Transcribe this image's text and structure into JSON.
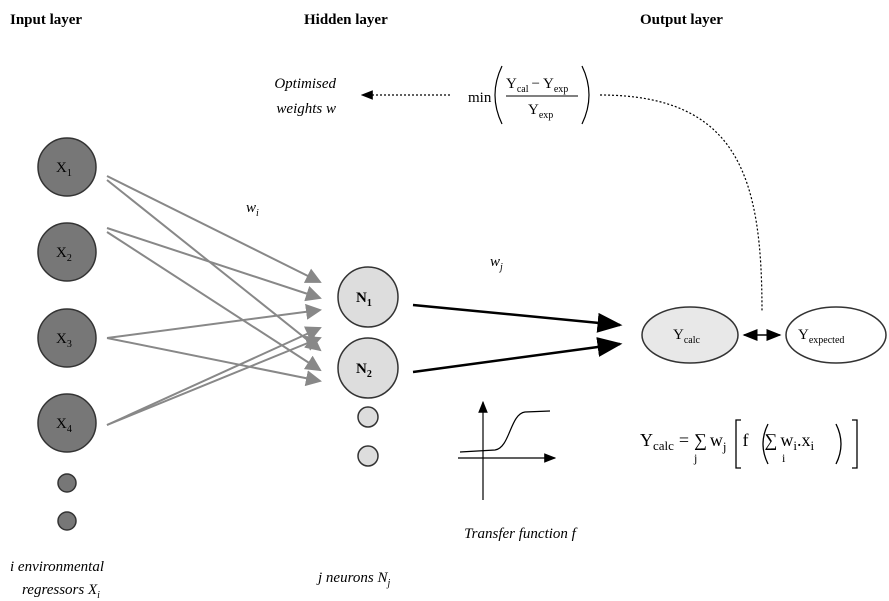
{
  "layers": {
    "input": "Input layer",
    "hidden": "Hidden layer",
    "output": "Output layer"
  },
  "inputs": [
    {
      "base": "X",
      "sub": "1"
    },
    {
      "base": "X",
      "sub": "2"
    },
    {
      "base": "X",
      "sub": "3"
    },
    {
      "base": "X",
      "sub": "4"
    }
  ],
  "hidden": [
    {
      "base": "N",
      "sub": "1"
    },
    {
      "base": "N",
      "sub": "2"
    }
  ],
  "output": {
    "calc": {
      "base": "Y",
      "sub": "calc"
    },
    "expected": {
      "base": "Y",
      "sub": "expected"
    }
  },
  "weights": {
    "wi": {
      "base": "w",
      "sub": "i"
    },
    "wj": {
      "base": "w",
      "sub": "j"
    }
  },
  "optimised": {
    "line1": "Optimised",
    "line2": "weights w"
  },
  "objective": {
    "op": "min",
    "numerator": {
      "a": {
        "base": "Y",
        "sub": "cal"
      },
      "minus": "−",
      "b": {
        "base": "Y",
        "sub": "exp"
      }
    },
    "denominator": {
      "base": "Y",
      "sub": "exp"
    }
  },
  "formula": {
    "lhs": {
      "base": "Y",
      "sub": "calc"
    },
    "eq": "=",
    "sum1": {
      "symbol": "∑",
      "sub": "j"
    },
    "w1": {
      "base": "w",
      "sub": "j"
    },
    "f": "f",
    "sum2": {
      "symbol": "∑",
      "sub": "i"
    },
    "w2": {
      "base": "w",
      "sub": "i"
    },
    "dot": ".",
    "x": {
      "base": "x",
      "sub": "i"
    }
  },
  "transfer_caption": "Transfer function f",
  "input_caption": {
    "line1": "i environmental",
    "line2": {
      "base": "regressors X",
      "sub": "i"
    }
  },
  "hidden_caption": {
    "base": "j neurons N",
    "sub": "j"
  }
}
